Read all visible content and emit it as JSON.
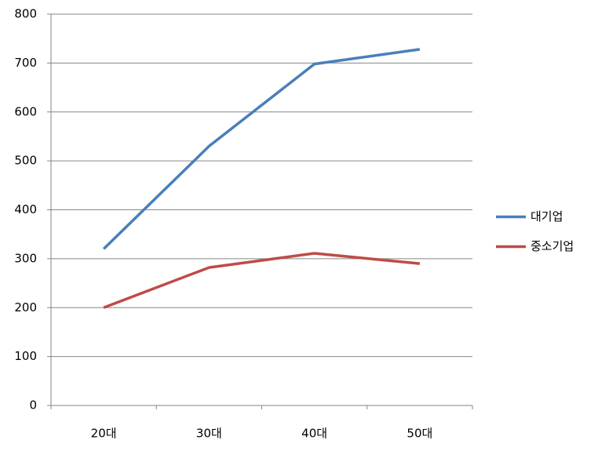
{
  "chart_data": {
    "type": "line",
    "categories": [
      "20대",
      "30대",
      "40대",
      "50대"
    ],
    "series": [
      {
        "name": "대기업",
        "color": "#4a7ebb",
        "values": [
          320,
          530,
          698,
          728
        ]
      },
      {
        "name": "중소기업",
        "color": "#be4b48",
        "values": [
          200,
          282,
          311,
          290
        ]
      }
    ],
    "ylim": [
      0,
      800
    ],
    "yticks": [
      0,
      100,
      200,
      300,
      400,
      500,
      600,
      700,
      800
    ],
    "grid": true,
    "legend": "right"
  }
}
